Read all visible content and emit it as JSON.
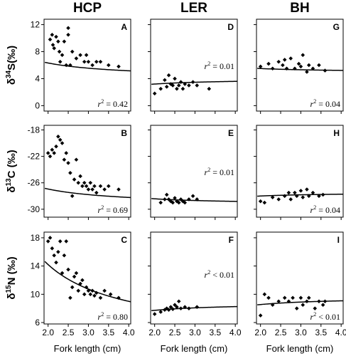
{
  "columns": [
    "HCP",
    "LER",
    "BH"
  ],
  "xlabel": "Fork length (cm)",
  "ylabels": [
    {
      "prefix": "δ",
      "sup": "34",
      "elem": "S(‰)"
    },
    {
      "prefix": "δ",
      "sup": "13",
      "elem": "C (‰)"
    },
    {
      "prefix": "δ",
      "sup": "15",
      "elem": "N (‰)"
    }
  ],
  "chart_data": [
    {
      "type": "scatter",
      "panel": "A",
      "column": "HCP",
      "row": 0,
      "xlim": [
        1.9,
        4.05
      ],
      "ylim": [
        -0.8,
        12.8
      ],
      "xticks": [
        "2.0",
        "2.5",
        "3.0",
        "3.5",
        "4.0"
      ],
      "yticks": [
        "0",
        "4",
        "8",
        "12"
      ],
      "annotation": {
        "r": "r",
        "sup": "2",
        "text": " = 0.42"
      },
      "x": [
        2.05,
        2.1,
        2.12,
        2.15,
        2.2,
        2.25,
        2.28,
        2.3,
        2.35,
        2.4,
        2.45,
        2.5,
        2.5,
        2.55,
        2.6,
        2.7,
        2.8,
        2.9,
        2.95,
        3.0,
        3.1,
        3.2,
        3.3,
        3.5,
        3.75
      ],
      "y": [
        9.8,
        10.5,
        9.0,
        8.5,
        10.2,
        9.5,
        8.0,
        6.5,
        7.5,
        9.5,
        6.0,
        10.5,
        11.5,
        6.0,
        8.0,
        7.0,
        7.5,
        6.5,
        7.5,
        6.5,
        6.0,
        6.5,
        6.5,
        6.0,
        5.8
      ],
      "fit": {
        "a": 4.01,
        "b": 4.62
      }
    },
    {
      "type": "scatter",
      "panel": "D",
      "column": "LER",
      "row": 0,
      "xlim": [
        1.9,
        4.05
      ],
      "ylim": [
        -0.8,
        12.8
      ],
      "xticks": [
        "2.0",
        "2.5",
        "3.0",
        "3.5",
        "4.0"
      ],
      "yticks": [
        "0",
        "4",
        "8",
        "12"
      ],
      "annotation": {
        "r": "r",
        "sup": "2",
        "text": " = 0.01"
      },
      "x": [
        2.0,
        2.15,
        2.25,
        2.3,
        2.35,
        2.4,
        2.45,
        2.5,
        2.55,
        2.6,
        2.65,
        2.7,
        2.75,
        2.85,
        2.95,
        3.05,
        3.35
      ],
      "y": [
        1.8,
        2.5,
        3.8,
        2.8,
        4.5,
        3.2,
        3.0,
        4.0,
        2.5,
        3.0,
        3.5,
        2.5,
        3.2,
        3.0,
        3.5,
        3.0,
        2.5
      ],
      "fit": {
        "a": 4.0,
        "b": -1.6
      }
    },
    {
      "type": "scatter",
      "panel": "G",
      "column": "BH",
      "row": 0,
      "xlim": [
        1.9,
        4.05
      ],
      "ylim": [
        -0.8,
        12.8
      ],
      "xticks": [
        "2.0",
        "2.5",
        "3.0",
        "3.5",
        "4.0"
      ],
      "yticks": [
        "0",
        "4",
        "8",
        "12"
      ],
      "annotation": {
        "r": "r",
        "sup": "2",
        "text": " = 0.04"
      },
      "x": [
        2.0,
        2.2,
        2.3,
        2.45,
        2.55,
        2.6,
        2.65,
        2.75,
        2.85,
        2.95,
        3.0,
        3.05,
        3.15,
        3.2,
        3.3,
        3.45,
        3.6
      ],
      "y": [
        5.8,
        6.2,
        5.5,
        6.5,
        6.0,
        6.8,
        5.5,
        7.0,
        5.5,
        6.2,
        5.8,
        7.5,
        5.0,
        6.0,
        5.5,
        6.0,
        5.2
      ],
      "fit": {
        "a": 4.95,
        "b": 1.1
      }
    },
    {
      "type": "scatter",
      "panel": "B",
      "column": "HCP",
      "row": 1,
      "xlim": [
        1.9,
        4.05
      ],
      "ylim": [
        -31.2,
        -17.3
      ],
      "xticks": [
        "2.0",
        "2.5",
        "3.0",
        "3.5",
        "4.0"
      ],
      "yticks": [
        "-18",
        "-22",
        "-26",
        "-30"
      ],
      "annotation": {
        "r": "r",
        "sup": "2",
        "text": " = 0.69"
      },
      "x": [
        2.0,
        2.05,
        2.1,
        2.15,
        2.2,
        2.25,
        2.3,
        2.35,
        2.4,
        2.45,
        2.5,
        2.55,
        2.6,
        2.65,
        2.7,
        2.75,
        2.8,
        2.85,
        2.9,
        2.95,
        3.0,
        3.05,
        3.1,
        3.15,
        3.2,
        3.3,
        3.4,
        3.5,
        3.75
      ],
      "y": [
        -21.5,
        -22.0,
        -21.0,
        -21.5,
        -20.5,
        -19.0,
        -19.5,
        -20.0,
        -22.5,
        -21.5,
        -23.0,
        -24.5,
        -28.0,
        -25.5,
        -22.5,
        -26.0,
        -25.0,
        -26.5,
        -26.0,
        -26.5,
        -27.0,
        -26.0,
        -27.0,
        -26.5,
        -27.5,
        -26.5,
        -27.0,
        -26.5,
        -27.0
      ],
      "fit": {
        "a": -29.48,
        "b": 5.07
      }
    },
    {
      "type": "scatter",
      "panel": "E",
      "column": "LER",
      "row": 1,
      "xlim": [
        1.9,
        4.05
      ],
      "ylim": [
        -31.2,
        -17.3
      ],
      "xticks": [
        "2.0",
        "2.5",
        "3.0",
        "3.5",
        "4.0"
      ],
      "yticks": [
        "-18",
        "-22",
        "-26",
        "-30"
      ],
      "annotation": {
        "r": "r",
        "sup": "2",
        "text": " = 0.01"
      },
      "x": [
        2.15,
        2.25,
        2.3,
        2.35,
        2.4,
        2.45,
        2.5,
        2.55,
        2.6,
        2.65,
        2.7,
        2.75,
        2.85,
        2.95,
        3.05
      ],
      "y": [
        -29.0,
        -28.5,
        -27.8,
        -28.5,
        -28.8,
        -29.0,
        -28.3,
        -28.8,
        -29.0,
        -28.5,
        -28.8,
        -29.0,
        -28.5,
        -28.0,
        -28.5
      ],
      "fit": {
        "a": -29.2,
        "b": 1.56
      }
    },
    {
      "type": "scatter",
      "panel": "H",
      "column": "BH",
      "row": 1,
      "xlim": [
        1.9,
        4.05
      ],
      "ylim": [
        -31.2,
        -17.3
      ],
      "xticks": [
        "2.0",
        "2.5",
        "3.0",
        "3.5",
        "4.0"
      ],
      "yticks": [
        "-18",
        "-22",
        "-26",
        "-30"
      ],
      "annotation": {
        "r": "r",
        "sup": "2",
        "text": " = 0.04"
      },
      "x": [
        2.0,
        2.1,
        2.3,
        2.45,
        2.6,
        2.7,
        2.75,
        2.85,
        2.9,
        3.0,
        3.05,
        3.15,
        3.2,
        3.3,
        3.45,
        3.55
      ],
      "y": [
        -28.8,
        -29.0,
        -28.2,
        -28.5,
        -28.0,
        -27.5,
        -28.5,
        -27.5,
        -28.0,
        -27.2,
        -28.2,
        -27.0,
        -28.0,
        -27.5,
        -28.0,
        -27.8
      ],
      "fit": {
        "a": -27.45,
        "b": -1.1
      }
    },
    {
      "type": "scatter",
      "panel": "C",
      "column": "HCP",
      "row": 2,
      "xlim": [
        1.9,
        4.05
      ],
      "ylim": [
        5.8,
        18.8
      ],
      "xticks": [
        "2.0",
        "2.5",
        "3.0",
        "3.5",
        "4.0"
      ],
      "yticks": [
        "18",
        "14",
        "10",
        "6"
      ],
      "annotation": {
        "r": "r",
        "sup": "2",
        "text": " = 0.80"
      },
      "x": [
        2.0,
        2.05,
        2.1,
        2.15,
        2.2,
        2.25,
        2.3,
        2.35,
        2.4,
        2.45,
        2.5,
        2.55,
        2.6,
        2.65,
        2.7,
        2.75,
        2.8,
        2.85,
        2.9,
        2.95,
        3.0,
        3.05,
        3.1,
        3.15,
        3.2,
        3.3,
        3.4,
        3.55,
        3.75
      ],
      "y": [
        17.5,
        18.0,
        16.5,
        15.5,
        14.5,
        16.0,
        17.5,
        13.0,
        15.5,
        17.5,
        13.5,
        9.5,
        11.0,
        12.5,
        13.0,
        10.5,
        11.5,
        12.0,
        10.0,
        11.0,
        10.5,
        10.0,
        10.5,
        9.8,
        10.2,
        9.5,
        10.5,
        10.0,
        9.5
      ],
      "fit": {
        "a": 3.8,
        "b": 20.82
      }
    },
    {
      "type": "scatter",
      "panel": "F",
      "column": "LER",
      "row": 2,
      "xlim": [
        1.9,
        4.05
      ],
      "ylim": [
        5.8,
        18.8
      ],
      "xticks": [
        "2.0",
        "2.5",
        "3.0",
        "3.5",
        "4.0"
      ],
      "yticks": [
        "18",
        "14",
        "10",
        "6"
      ],
      "annotation": {
        "r": "r",
        "sup": "2",
        "text": " < 0.01"
      },
      "x": [
        2.0,
        2.15,
        2.25,
        2.3,
        2.35,
        2.4,
        2.45,
        2.5,
        2.55,
        2.6,
        2.65,
        2.75,
        2.85,
        3.05
      ],
      "y": [
        7.2,
        7.5,
        7.8,
        8.0,
        7.8,
        8.2,
        7.9,
        8.5,
        8.2,
        9.0,
        8.0,
        8.2,
        8.0,
        8.2
      ],
      "fit": {
        "a": 8.78,
        "b": -2.1
      }
    },
    {
      "type": "scatter",
      "panel": "I",
      "column": "BH",
      "row": 2,
      "xlim": [
        1.9,
        4.05
      ],
      "ylim": [
        5.8,
        18.8
      ],
      "xticks": [
        "2.0",
        "2.5",
        "3.0",
        "3.5",
        "4.0"
      ],
      "yticks": [
        "18",
        "14",
        "10",
        "6"
      ],
      "annotation": {
        "r": "r",
        "sup": "2",
        "text": " < 0.01"
      },
      "x": [
        2.0,
        2.1,
        2.2,
        2.3,
        2.45,
        2.6,
        2.7,
        2.8,
        2.9,
        3.0,
        3.05,
        3.15,
        3.2,
        3.35,
        3.45,
        3.55,
        3.6
      ],
      "y": [
        7.0,
        10.0,
        9.5,
        8.5,
        9.0,
        9.5,
        9.0,
        9.5,
        8.0,
        9.5,
        8.5,
        9.0,
        9.5,
        8.0,
        9.0,
        8.5,
        9.0
      ],
      "fit": {
        "a": 9.6,
        "b": -2.1
      }
    }
  ]
}
